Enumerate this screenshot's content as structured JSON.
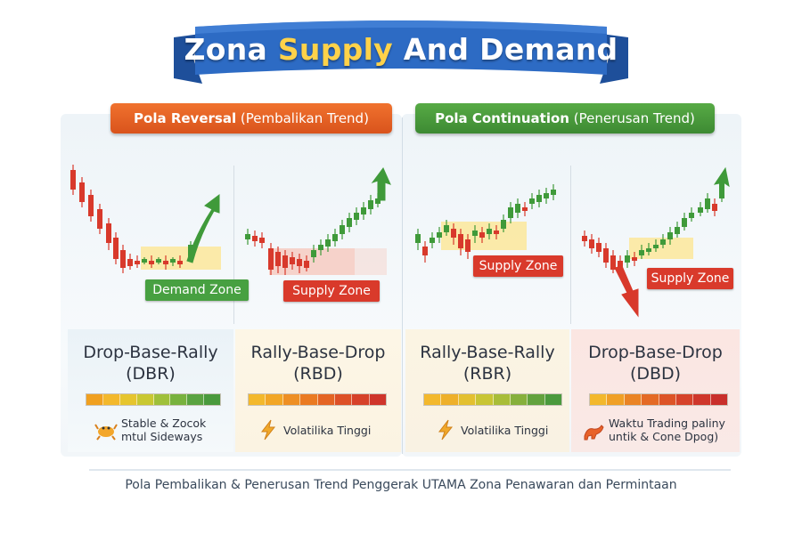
{
  "title": {
    "part1": "Zona ",
    "part2": "Supply",
    "part3": " And Demand"
  },
  "sections": [
    {
      "label_bold": "Pola Reversal",
      "label_rest": " (Pembalikan Trend)",
      "color": "#e0602a"
    },
    {
      "label_bold": "Pola Continuation",
      "label_rest": " (Penerusan Trend)",
      "color": "#4a9a3d"
    }
  ],
  "patterns": [
    {
      "zone_label": "Demand Zone",
      "name_line1": "Drop-Base-Rally",
      "name_line2": "(DBR)",
      "note_line1": "Stable & Zocok",
      "note_line2": "mtul Sideways",
      "icon": "crab-icon"
    },
    {
      "zone_label": "Supply Zone",
      "name_line1": "Rally-Base-Drop",
      "name_line2": "(RBD)",
      "note_line1": "Volatilika Tinggi",
      "note_line2": "",
      "icon": "lightning-icon"
    },
    {
      "zone_label": "Supply Zone",
      "name_line1": "Rally-Base-Rally",
      "name_line2": "(RBR)",
      "note_line1": "Volatilika Tinggi",
      "note_line2": "",
      "icon": "lightning-icon"
    },
    {
      "zone_label": "Supply Zone",
      "name_line1": "Drop-Base-Drop",
      "name_line2": "(DBD)",
      "note_line1": "Waktu Trading paliny",
      "note_line2": "untik & Cone Dpog)",
      "icon": "bull-icon"
    }
  ],
  "colors": {
    "ribbon": "#2d6bc4",
    "bullish": "#3f9a3a",
    "bearish": "#d8392b",
    "zone_yellow": "#fbe79a",
    "zone_red": "#f6c2b5"
  },
  "footer": "Pola Pembalikan & Penerusan Trend Penggerak UTAMA Zona Penawaran dan Permintaan"
}
